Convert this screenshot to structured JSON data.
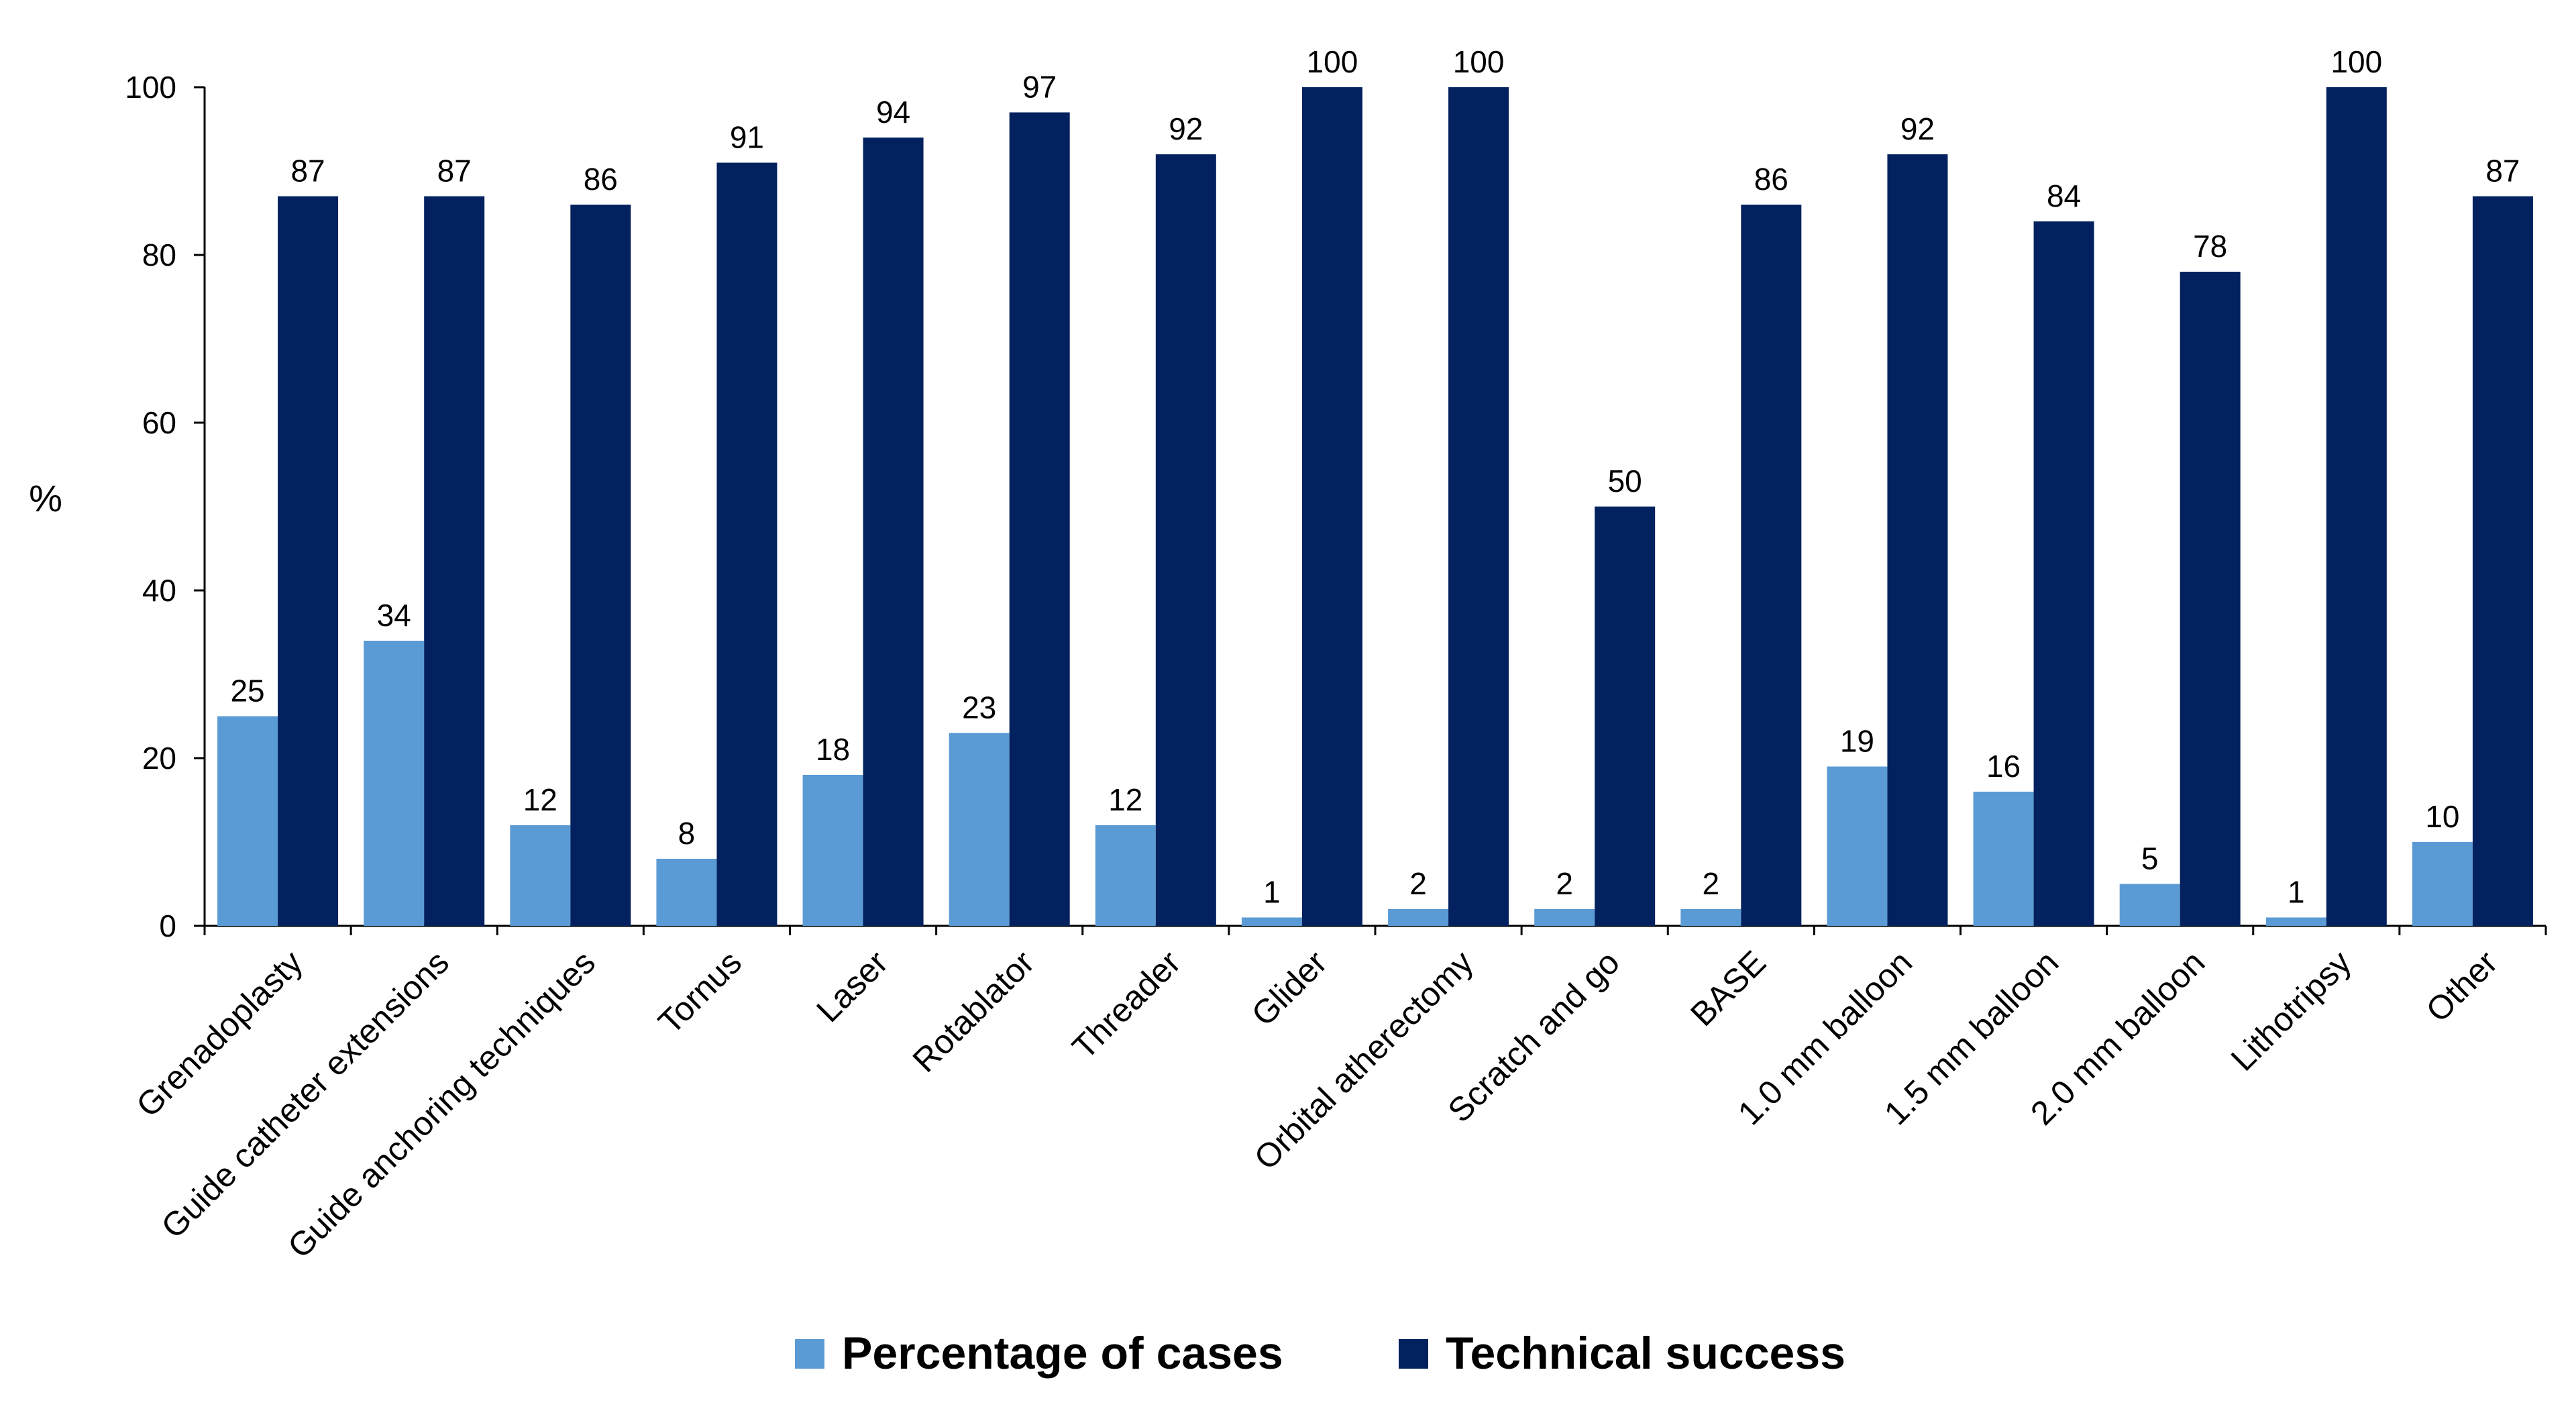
{
  "chart_data": {
    "type": "bar",
    "categories": [
      "Grenadoplasty",
      "Guide catheter extensions",
      "Guide anchoring techniques",
      "Tornus",
      "Laser",
      "Rotablator",
      "Threader",
      "Glider",
      "Orbital atherectomy",
      "Scratch and go",
      "BASE",
      "1.0 mm balloon",
      "1.5 mm balloon",
      "2.0 mm balloon",
      "Lithotripsy",
      "Other"
    ],
    "series": [
      {
        "name": "Percentage of cases",
        "color": "#5b9bd5",
        "values": [
          25,
          34,
          12,
          8,
          18,
          23,
          12,
          1,
          2,
          2,
          2,
          19,
          16,
          5,
          1,
          10
        ],
        "labels": [
          "25",
          "34",
          "12",
          "8",
          "18",
          "23",
          "12",
          "1",
          "2",
          "2",
          "2",
          "19",
          "16",
          "5",
          "1",
          "10"
        ]
      },
      {
        "name": "Technical success",
        "color": "#03215e",
        "values": [
          87,
          87,
          86,
          91,
          94,
          97,
          92,
          100,
          100,
          50,
          86,
          92,
          84,
          78,
          100,
          87
        ],
        "labels": [
          "87",
          "87",
          "86",
          "91",
          "94",
          "97",
          "92",
          "100",
          "100",
          "50",
          "86",
          "92",
          "84",
          "78",
          "100",
          "87"
        ]
      }
    ],
    "title": "",
    "xlabel": "",
    "ylabel": "%",
    "ylim": [
      0,
      100
    ],
    "yticks": [
      0,
      20,
      40,
      60,
      80,
      100
    ],
    "ytick_labels": [
      "0",
      "20",
      "40",
      "60",
      "80",
      "100"
    ],
    "grid": false,
    "legend": "bottom"
  }
}
